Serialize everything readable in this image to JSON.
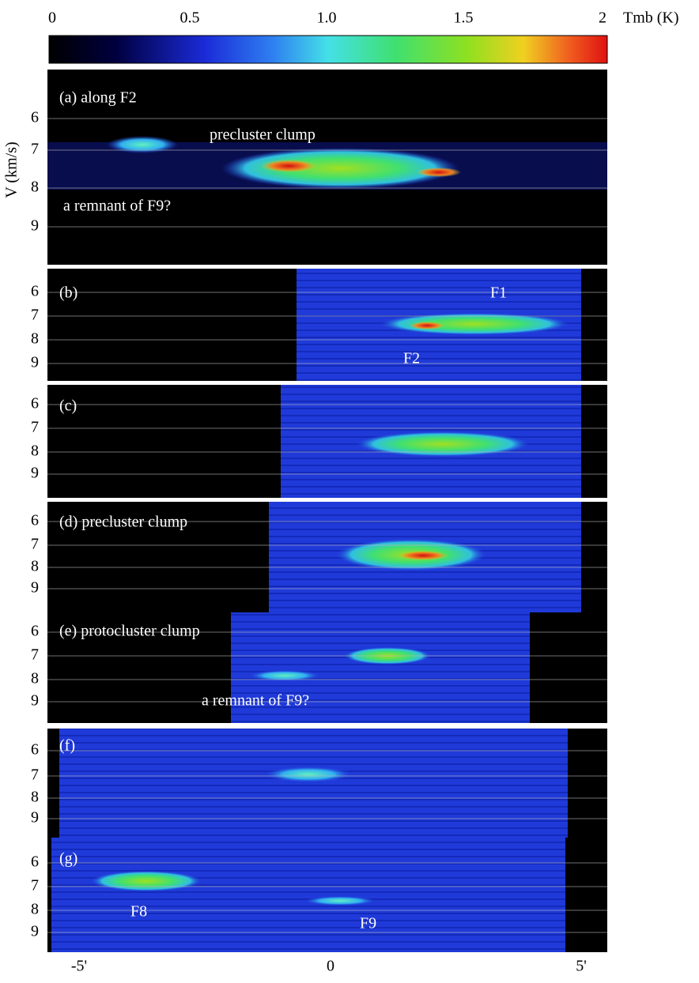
{
  "colorbar": {
    "ticks": [
      "0",
      "0.5",
      "1.0",
      "1.5",
      "2"
    ],
    "label": "Tmb (K)"
  },
  "y_axis_label": "V (km/s)",
  "panels": [
    {
      "label": "(a) along F2",
      "yticks": [
        "6",
        "7",
        "8",
        "9"
      ],
      "annotations": [
        "precluster clump",
        "a remnant of F9?"
      ]
    },
    {
      "label": "(b)",
      "yticks": [
        "6",
        "7",
        "8",
        "9"
      ],
      "annotations": [
        "F1",
        "F2"
      ]
    },
    {
      "label": "(c)",
      "yticks": [
        "6",
        "7",
        "8",
        "9"
      ],
      "annotations": []
    },
    {
      "label": "(d) precluster clump",
      "yticks": [
        "6",
        "7",
        "8",
        "9"
      ],
      "annotations": []
    },
    {
      "label": "(e) protocluster clump",
      "yticks": [
        "6",
        "7",
        "8",
        "9"
      ],
      "annotations": [
        "a remnant of F9?"
      ]
    },
    {
      "label": "(f)",
      "yticks": [
        "6",
        "7",
        "8",
        "9"
      ],
      "annotations": []
    },
    {
      "label": "(g)",
      "yticks": [
        "6",
        "7",
        "8",
        "9"
      ],
      "annotations": [
        "F8",
        "F9"
      ]
    }
  ],
  "xticks": [
    "-5'",
    "0",
    "5'"
  ]
}
